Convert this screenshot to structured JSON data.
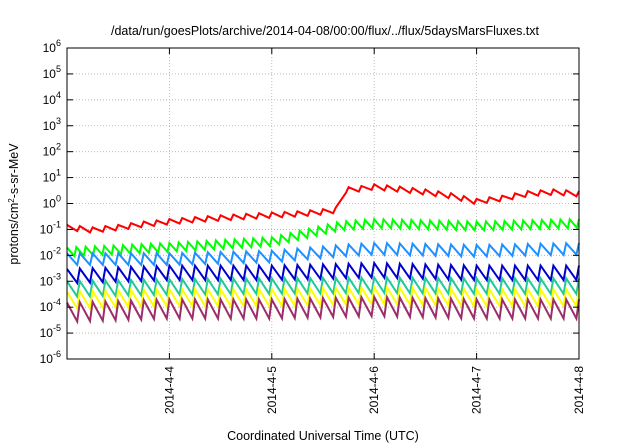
{
  "chart_data": {
    "type": "line",
    "title": "/data/run/goesPlots/archive/2014-04-08/00:00/flux/../flux/5daysMarsFluxes.txt",
    "xlabel": "Coordinated Universal Time (UTC)",
    "ylabel": "protons/cm2-s-sr-MeV",
    "y_scale": "log",
    "ylim": [
      1e-06,
      1000000.0
    ],
    "xlim": [
      "2014-04-03 00:00",
      "2014-04-08 00:00"
    ],
    "grid": true,
    "legend": "none",
    "x_ticks": [
      "2014-4-4",
      "2014-4-5",
      "2014-4-6",
      "2014-4-7",
      "2014-4-8"
    ],
    "y_ticks": [
      {
        "base": "10",
        "exp": "-6"
      },
      {
        "base": "10",
        "exp": "-5"
      },
      {
        "base": "10",
        "exp": "-4"
      },
      {
        "base": "10",
        "exp": "-3"
      },
      {
        "base": "10",
        "exp": "-2"
      },
      {
        "base": "10",
        "exp": "-1"
      },
      {
        "base": "10",
        "exp": "0"
      },
      {
        "base": "10",
        "exp": "1"
      },
      {
        "base": "10",
        "exp": "2"
      },
      {
        "base": "10",
        "exp": "3"
      },
      {
        "base": "10",
        "exp": "4"
      },
      {
        "base": "10",
        "exp": "5"
      },
      {
        "base": "10",
        "exp": "6"
      }
    ],
    "series": [
      {
        "color": "#ff0000",
        "x": [
          "2014-04-03 00:00",
          "2014-04-03 06:00",
          "2014-04-03 12:00",
          "2014-04-03 18:00",
          "2014-04-04 00:00",
          "2014-04-04 06:00",
          "2014-04-04 12:00",
          "2014-04-04 18:00",
          "2014-04-05 00:00",
          "2014-04-05 06:00",
          "2014-04-05 12:00",
          "2014-04-05 15:00",
          "2014-04-05 16:00",
          "2014-04-05 20:00",
          "2014-04-06 00:00",
          "2014-04-06 06:00",
          "2014-04-06 12:00",
          "2014-04-06 18:00",
          "2014-04-07 00:00",
          "2014-04-07 06:00",
          "2014-04-07 12:00",
          "2014-04-07 18:00",
          "2014-04-08 00:00"
        ],
        "y": [
          0.15,
          0.12,
          0.15,
          0.2,
          0.25,
          0.3,
          0.35,
          0.4,
          0.45,
          0.5,
          0.6,
          0.7,
          4.0,
          4.5,
          5.5,
          4.5,
          3.5,
          2.5,
          1.5,
          2.0,
          3.0,
          3.5,
          3.0
        ]
      },
      {
        "color": "#00ff00",
        "x": [
          "2014-04-03 00:00",
          "2014-04-04 00:00",
          "2014-04-05 00:00",
          "2014-04-05 16:00",
          "2014-04-06 00:00",
          "2014-04-07 00:00",
          "2014-04-08 00:00"
        ],
        "y": [
          0.02,
          0.03,
          0.05,
          0.2,
          0.25,
          0.2,
          0.25
        ]
      },
      {
        "color": "#1e90ff",
        "x": [
          "2014-04-03 00:00",
          "2014-04-04 00:00",
          "2014-04-05 00:00",
          "2014-04-05 16:00",
          "2014-04-06 00:00",
          "2014-04-07 00:00",
          "2014-04-08 00:00"
        ],
        "y": [
          0.012,
          0.012,
          0.015,
          0.025,
          0.03,
          0.025,
          0.03
        ]
      },
      {
        "color": "#0000cd",
        "x": [
          "2014-04-03 00:00",
          "2014-04-04 00:00",
          "2014-04-05 00:00",
          "2014-04-06 00:00",
          "2014-04-07 00:00",
          "2014-04-08 00:00"
        ],
        "y": [
          0.003,
          0.004,
          0.004,
          0.005,
          0.004,
          0.004
        ]
      },
      {
        "color": "#20c997",
        "x": [
          "2014-04-03 00:00",
          "2014-04-04 00:00",
          "2014-04-05 00:00",
          "2014-04-06 00:00",
          "2014-04-07 00:00",
          "2014-04-08 00:00"
        ],
        "y": [
          0.001,
          0.0012,
          0.0013,
          0.0014,
          0.0013,
          0.0013
        ]
      },
      {
        "color": "#ffff00",
        "x": [
          "2014-04-03 00:00",
          "2014-04-04 00:00",
          "2014-04-05 00:00",
          "2014-04-06 00:00",
          "2014-04-07 00:00",
          "2014-04-08 00:00"
        ],
        "y": [
          0.0004,
          0.0005,
          0.0005,
          0.0006,
          0.0005,
          0.0005
        ]
      },
      {
        "color": "#9b2d6a",
        "x": [
          "2014-04-03 00:00",
          "2014-04-04 00:00",
          "2014-04-05 00:00",
          "2014-04-06 00:00",
          "2014-04-07 00:00",
          "2014-04-08 00:00"
        ],
        "y": [
          0.00015,
          0.0002,
          0.0002,
          0.00025,
          0.0002,
          0.0002
        ]
      }
    ]
  }
}
